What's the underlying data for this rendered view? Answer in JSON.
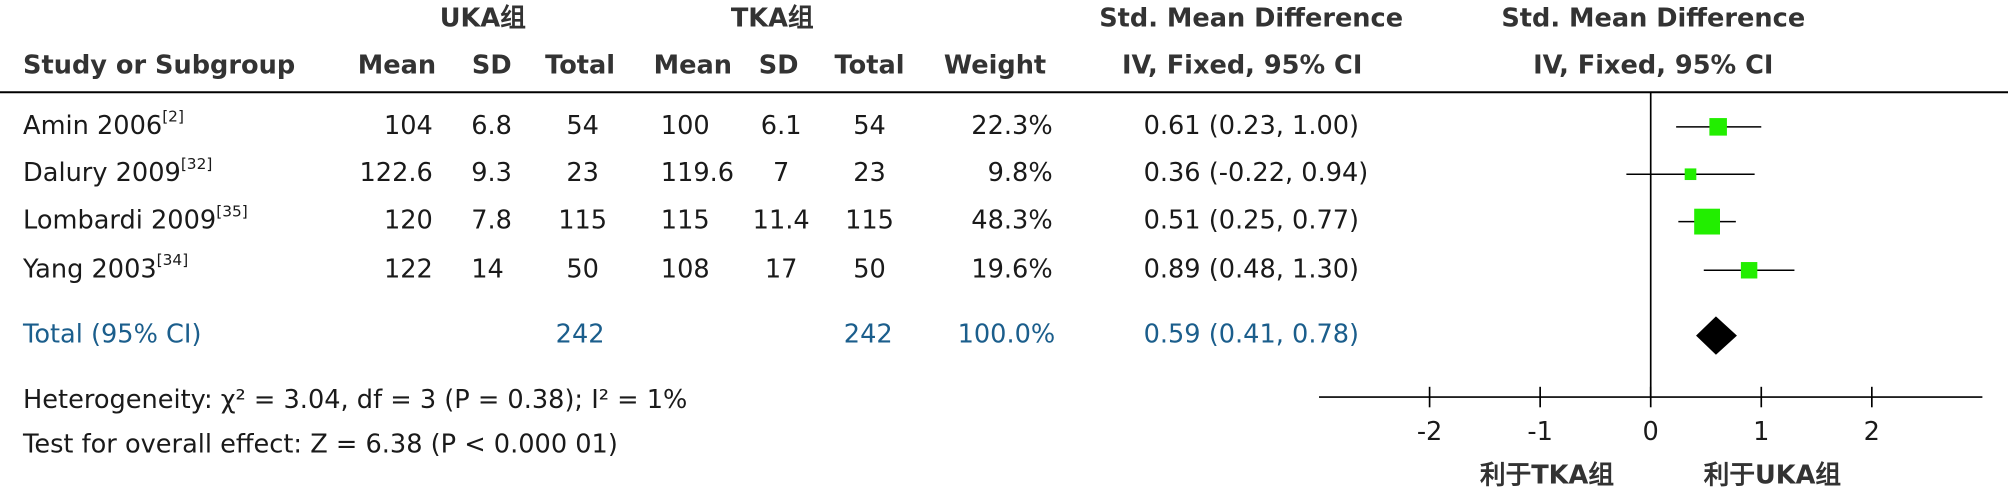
{
  "chart_data": {
    "type": "forest",
    "group_headers": [
      "UKA组",
      "TKA组"
    ],
    "effect_header": "Std. Mean Difference",
    "method_header": "IV, Fixed, 95% CI",
    "columns": [
      "Study or Subgroup",
      "Mean",
      "SD",
      "Total",
      "Mean",
      "SD",
      "Total",
      "Weight"
    ],
    "studies": [
      {
        "name": "Amin 2006",
        "ref": "[2]",
        "uka": [
          104,
          6.8,
          54
        ],
        "tka": [
          100,
          6.1,
          54
        ],
        "weight": 22.3,
        "weight_label": "22.3%",
        "smd": 0.61,
        "ci": [
          0.23,
          1.0
        ],
        "ci_label": "0.61 (0.23, 1.00)"
      },
      {
        "name": "Dalury 2009",
        "ref": "[32]",
        "uka": [
          122.6,
          9.3,
          23
        ],
        "tka": [
          119.6,
          7,
          23
        ],
        "weight": 9.8,
        "weight_label": "9.8%",
        "smd": 0.36,
        "ci": [
          -0.22,
          0.94
        ],
        "ci_label": "0.36 (-0.22, 0.94)"
      },
      {
        "name": "Lombardi 2009",
        "ref": "[35]",
        "uka": [
          120,
          7.8,
          115
        ],
        "tka": [
          115,
          11.4,
          115
        ],
        "weight": 48.3,
        "weight_label": "48.3%",
        "smd": 0.51,
        "ci": [
          0.25,
          0.77
        ],
        "ci_label": "0.51 (0.25, 0.77)"
      },
      {
        "name": "Yang 2003",
        "ref": "[34]",
        "uka": [
          122,
          14,
          50
        ],
        "tka": [
          108,
          17,
          50
        ],
        "weight": 19.6,
        "weight_label": "19.6%",
        "smd": 0.89,
        "ci": [
          0.48,
          1.3
        ],
        "ci_label": "0.89 (0.48, 1.30)"
      }
    ],
    "total": {
      "name": "Total (95% CI)",
      "uka_total": 242,
      "tka_total": 242,
      "weight": 100.0,
      "weight_label": "100.0%",
      "smd": 0.59,
      "ci": [
        0.41,
        0.78
      ],
      "ci_label": "0.59 (0.41, 0.78)"
    },
    "heterogeneity": "Heterogeneity: χ² = 3.04, df = 3 (P = 0.38); I² = 1%",
    "overall_effect": "Test for overall effect: Z = 6.38 (P < 0.000 01)",
    "xlim": [
      -3,
      3
    ],
    "xticks": [
      -2,
      -1,
      0,
      1,
      2
    ],
    "favours": [
      "利于TKA组",
      "利于UKA组"
    ],
    "color": "#22ee00"
  }
}
